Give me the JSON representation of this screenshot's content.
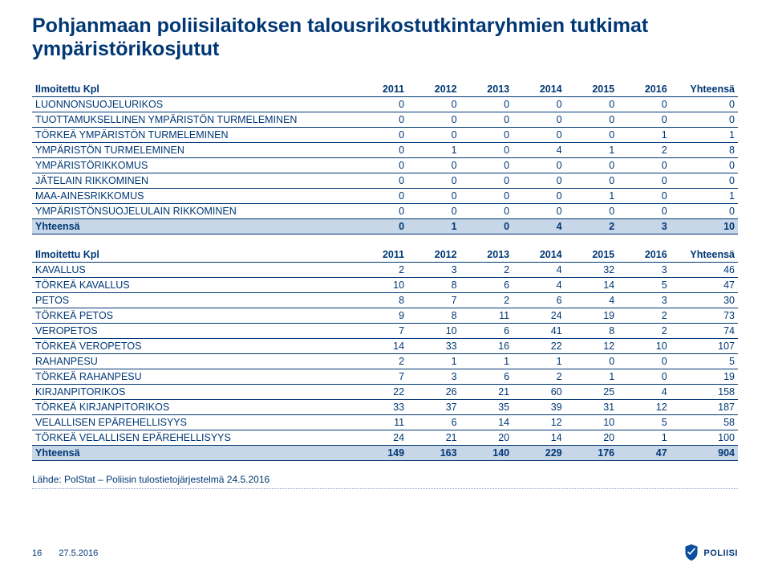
{
  "title": "Pohjanmaan poliisilaitoksen talousrikostutkintaryhmien tutkimat ympäristörikosjutut",
  "columns": [
    "Ilmoitettu Kpl",
    "2011",
    "2012",
    "2013",
    "2014",
    "2015",
    "2016",
    "Yhteensä"
  ],
  "table1": {
    "rows": [
      [
        "LUONNONSUOJELURIKOS",
        0,
        0,
        0,
        0,
        0,
        0,
        0
      ],
      [
        "TUOTTAMUKSELLINEN YMPÄRISTÖN TURMELEMINEN",
        0,
        0,
        0,
        0,
        0,
        0,
        0
      ],
      [
        "TÖRKEÄ YMPÄRISTÖN TURMELEMINEN",
        0,
        0,
        0,
        0,
        0,
        1,
        1
      ],
      [
        "YMPÄRISTÖN TURMELEMINEN",
        0,
        1,
        0,
        4,
        1,
        2,
        8
      ],
      [
        "YMPÄRISTÖRIKKOMUS",
        0,
        0,
        0,
        0,
        0,
        0,
        0
      ],
      [
        "JÄTELAIN RIKKOMINEN",
        0,
        0,
        0,
        0,
        0,
        0,
        0
      ],
      [
        "MAA-AINESRIKKOMUS",
        0,
        0,
        0,
        0,
        1,
        0,
        1
      ],
      [
        "YMPÄRISTÖNSUOJELULAIN RIKKOMINEN",
        0,
        0,
        0,
        0,
        0,
        0,
        0
      ]
    ],
    "total": [
      "Yhteensä",
      0,
      1,
      0,
      4,
      2,
      3,
      10
    ]
  },
  "table2": {
    "rows": [
      [
        "KAVALLUS",
        2,
        3,
        2,
        4,
        32,
        3,
        46
      ],
      [
        "TÖRKEÄ KAVALLUS",
        10,
        8,
        6,
        4,
        14,
        5,
        47
      ],
      [
        "PETOS",
        8,
        7,
        2,
        6,
        4,
        3,
        30
      ],
      [
        "TÖRKEÄ PETOS",
        9,
        8,
        11,
        24,
        19,
        2,
        73
      ],
      [
        "VEROPETOS",
        7,
        10,
        6,
        41,
        8,
        2,
        74
      ],
      [
        "TÖRKEÄ VEROPETOS",
        14,
        33,
        16,
        22,
        12,
        10,
        107
      ],
      [
        "RAHANPESU",
        2,
        1,
        1,
        1,
        0,
        0,
        5
      ],
      [
        "TÖRKEÄ RAHANPESU",
        7,
        3,
        6,
        2,
        1,
        0,
        19
      ],
      [
        "KIRJANPITORIKOS",
        22,
        26,
        21,
        60,
        25,
        4,
        158
      ],
      [
        "TÖRKEÄ KIRJANPITORIKOS",
        33,
        37,
        35,
        39,
        31,
        12,
        187
      ],
      [
        "VELALLISEN EPÄREHELLISYYS",
        11,
        6,
        14,
        12,
        10,
        5,
        58
      ],
      [
        "TÖRKEÄ VELALLISEN EPÄREHELLISYYS",
        24,
        21,
        20,
        14,
        20,
        1,
        100
      ]
    ],
    "total": [
      "Yhteensä",
      149,
      163,
      140,
      229,
      176,
      47,
      904
    ]
  },
  "source": "Lähde: PolStat – Poliisin tulostietojärjestelmä 24.5.2016",
  "footer": {
    "page": "16",
    "date": "27.5.2016",
    "brand": "POLIISI"
  }
}
